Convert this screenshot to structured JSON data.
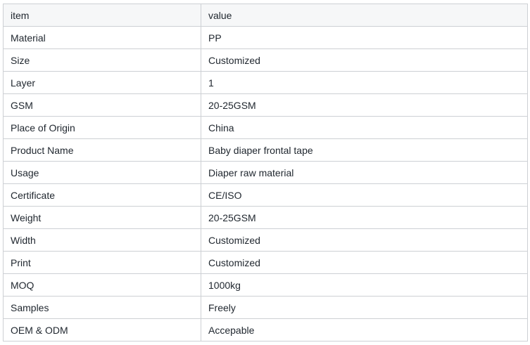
{
  "table": {
    "columns": [
      {
        "key": "item",
        "label": "item"
      },
      {
        "key": "value",
        "label": "value"
      }
    ],
    "rows": [
      {
        "item": "Material",
        "value": "PP"
      },
      {
        "item": "Size",
        "value": "Customized"
      },
      {
        "item": "Layer",
        "value": "1"
      },
      {
        "item": "GSM",
        "value": "20-25GSM"
      },
      {
        "item": "Place of Origin",
        "value": "China"
      },
      {
        "item": "Product Name",
        "value": "Baby diaper frontal tape"
      },
      {
        "item": "Usage",
        "value": "Diaper raw material"
      },
      {
        "item": "Certificate",
        "value": "CE/ISO"
      },
      {
        "item": "Weight",
        "value": "20-25GSM"
      },
      {
        "item": "Width",
        "value": "Customized"
      },
      {
        "item": "Print",
        "value": "Customized"
      },
      {
        "item": "MOQ",
        "value": "1000kg"
      },
      {
        "item": "Samples",
        "value": "Freely"
      },
      {
        "item": "OEM & ODM",
        "value": "Accepable"
      }
    ],
    "colors": {
      "header_bg": "#f6f7f8",
      "border": "#cdd0d4",
      "text": "#1f262e"
    }
  }
}
